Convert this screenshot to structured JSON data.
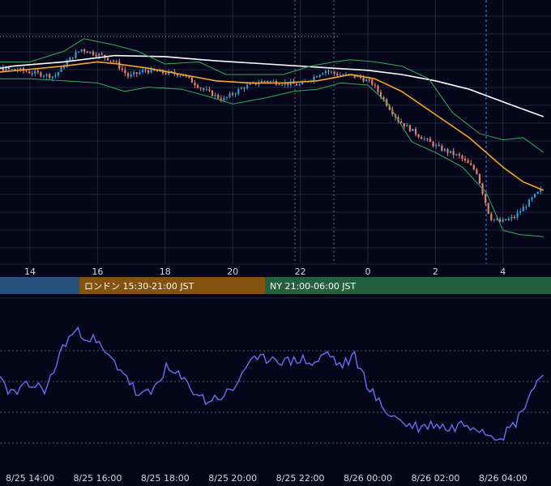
{
  "colors": {
    "background": "#05061a",
    "grid": "#24283c",
    "candle_up": "#2f9bd6",
    "candle_down": "#e0826e",
    "ma_fast": "#f5a623",
    "ma_slow": "#ffffff",
    "bollinger": "#2fae5a",
    "rsi_line": "#6a6ef2",
    "session_tokyo": "#28507f",
    "session_london": "#83520f",
    "session_ny": "#23603e",
    "session_marker": "#4c8fd6",
    "dotted_level": "#bfc3d6"
  },
  "sessions": [
    {
      "name": "tokyo",
      "label": ""
    },
    {
      "name": "london",
      "label": "ロンドン 15:30-21:00 JST"
    },
    {
      "name": "ny",
      "label": "NY 21:00-06:00 JST"
    }
  ],
  "chart_data": [
    {
      "type": "candlestick",
      "title": "",
      "xlabel": "",
      "ylabel": "",
      "y_axis_labels": "none shown",
      "grid": true,
      "x_axis_hours": [
        "14",
        "16",
        "18",
        "20",
        "22",
        "0",
        "2",
        "4"
      ],
      "hour_range": [
        12.0,
        29.2
      ],
      "price_range_relative": [
        0,
        100
      ],
      "bar_minutes": 5,
      "bars_shown": 200,
      "price_path_anchors": [
        [
          12.0,
          84
        ],
        [
          13.0,
          83
        ],
        [
          13.8,
          82
        ],
        [
          14.8,
          79
        ],
        [
          15.3,
          88
        ],
        [
          15.6,
          92
        ],
        [
          16.2,
          89
        ],
        [
          16.6,
          86
        ],
        [
          17.0,
          79
        ],
        [
          17.5,
          82
        ],
        [
          18.0,
          81
        ],
        [
          18.6,
          80
        ],
        [
          19.2,
          73
        ],
        [
          19.8,
          68
        ],
        [
          20.4,
          74
        ],
        [
          21.0,
          77
        ],
        [
          21.6,
          76
        ],
        [
          22.1,
          75
        ],
        [
          22.8,
          82
        ],
        [
          23.2,
          80
        ],
        [
          23.8,
          79
        ],
        [
          24.2,
          76
        ],
        [
          24.6,
          67
        ],
        [
          25.0,
          58
        ],
        [
          25.6,
          51
        ],
        [
          26.2,
          45
        ],
        [
          26.8,
          41
        ],
        [
          27.3,
          34
        ],
        [
          27.7,
          12
        ],
        [
          28.0,
          10
        ],
        [
          28.4,
          12
        ],
        [
          29.0,
          22
        ],
        [
          29.2,
          25
        ]
      ],
      "series": [
        {
          "name": "",
          "role": "moving-average-slow",
          "points": [
            [
              12.0,
              80
            ],
            [
              13.5,
              84
            ],
            [
              15.0,
              86
            ],
            [
              16.5,
              89
            ],
            [
              18.0,
              88.5
            ],
            [
              19.5,
              86.5
            ],
            [
              21.0,
              85
            ],
            [
              22.5,
              83.5
            ],
            [
              24.0,
              82
            ],
            [
              25.0,
              80
            ],
            [
              26.0,
              77
            ],
            [
              27.0,
              73
            ],
            [
              28.0,
              67
            ],
            [
              29.2,
              60
            ]
          ]
        },
        {
          "name": "",
          "role": "moving-average-fast",
          "points": [
            [
              12.0,
              79
            ],
            [
              13.0,
              81
            ],
            [
              14.0,
              82.5
            ],
            [
              15.0,
              84
            ],
            [
              16.0,
              86
            ],
            [
              16.6,
              85
            ],
            [
              17.5,
              83
            ],
            [
              18.5,
              80
            ],
            [
              19.5,
              77
            ],
            [
              20.5,
              76
            ],
            [
              21.5,
              76
            ],
            [
              22.5,
              77
            ],
            [
              23.5,
              80
            ],
            [
              24.2,
              78
            ],
            [
              25.0,
              72
            ],
            [
              26.0,
              61
            ],
            [
              27.0,
              50
            ],
            [
              28.0,
              36
            ],
            [
              28.6,
              29
            ],
            [
              29.2,
              25
            ]
          ]
        },
        {
          "name": "",
          "role": "bollinger-upper",
          "points": [
            [
              12.0,
              87
            ],
            [
              13.0,
              86
            ],
            [
              14.0,
              86
            ],
            [
              15.0,
              91
            ],
            [
              15.6,
              97
            ],
            [
              16.5,
              94
            ],
            [
              17.2,
              91
            ],
            [
              18.0,
              85
            ],
            [
              19.0,
              86
            ],
            [
              19.8,
              80
            ],
            [
              20.5,
              80
            ],
            [
              21.5,
              80
            ],
            [
              22.3,
              84
            ],
            [
              23.0,
              86
            ],
            [
              23.5,
              87
            ],
            [
              24.2,
              86
            ],
            [
              25.0,
              84
            ],
            [
              25.8,
              78
            ],
            [
              26.5,
              62
            ],
            [
              27.3,
              52
            ],
            [
              28.0,
              49
            ],
            [
              28.6,
              50
            ],
            [
              29.2,
              43
            ]
          ]
        },
        {
          "name": "",
          "role": "bollinger-lower",
          "points": [
            [
              12.0,
              77
            ],
            [
              13.0,
              78
            ],
            [
              14.0,
              78
            ],
            [
              15.0,
              77
            ],
            [
              16.0,
              76
            ],
            [
              16.8,
              72
            ],
            [
              17.5,
              74
            ],
            [
              18.5,
              73
            ],
            [
              19.4,
              69
            ],
            [
              20.0,
              66
            ],
            [
              21.0,
              69
            ],
            [
              21.8,
              72
            ],
            [
              22.5,
              73
            ],
            [
              23.2,
              76
            ],
            [
              24.0,
              75
            ],
            [
              24.6,
              66
            ],
            [
              25.3,
              48
            ],
            [
              26.0,
              43
            ],
            [
              26.8,
              36
            ],
            [
              27.5,
              24
            ],
            [
              28.0,
              6
            ],
            [
              28.5,
              4
            ],
            [
              29.2,
              3
            ]
          ]
        }
      ]
    },
    {
      "type": "line",
      "title": "",
      "xlabel": "",
      "ylabel": "",
      "y_axis_labels": "none shown",
      "x_tick_labels": [
        "8/25 14:00",
        "8/25 16:00",
        "8/25 18:00",
        "8/25 20:00",
        "8/25 22:00",
        "8/26 00:00",
        "8/26 02:00",
        "8/26 04:00"
      ],
      "y_range": [
        0,
        100
      ],
      "series": [
        {
          "name": "",
          "points": [
            [
              12.0,
              63
            ],
            [
              12.5,
              58
            ],
            [
              13.0,
              50
            ],
            [
              13.5,
              41
            ],
            [
              14.0,
              46
            ],
            [
              14.5,
              44
            ],
            [
              15.0,
              66
            ],
            [
              15.3,
              72
            ],
            [
              15.6,
              71
            ],
            [
              15.9,
              68
            ],
            [
              16.3,
              60
            ],
            [
              16.8,
              52
            ],
            [
              17.2,
              40
            ],
            [
              17.6,
              42
            ],
            [
              18.0,
              54
            ],
            [
              18.4,
              50
            ],
            [
              18.8,
              44
            ],
            [
              19.2,
              38
            ],
            [
              19.6,
              40
            ],
            [
              20.0,
              43
            ],
            [
              20.4,
              56
            ],
            [
              20.8,
              58
            ],
            [
              21.2,
              60
            ],
            [
              21.6,
              57
            ],
            [
              22.0,
              59
            ],
            [
              22.4,
              56
            ],
            [
              22.8,
              62
            ],
            [
              23.2,
              55
            ],
            [
              23.6,
              60
            ],
            [
              24.0,
              46
            ],
            [
              24.4,
              35
            ],
            [
              24.8,
              30
            ],
            [
              25.2,
              26
            ],
            [
              25.6,
              25
            ],
            [
              26.0,
              27
            ],
            [
              26.4,
              24
            ],
            [
              26.8,
              27
            ],
            [
              27.2,
              26
            ],
            [
              27.6,
              22
            ],
            [
              28.0,
              21
            ],
            [
              28.4,
              28
            ],
            [
              28.8,
              42
            ],
            [
              29.2,
              52
            ]
          ]
        }
      ]
    }
  ]
}
